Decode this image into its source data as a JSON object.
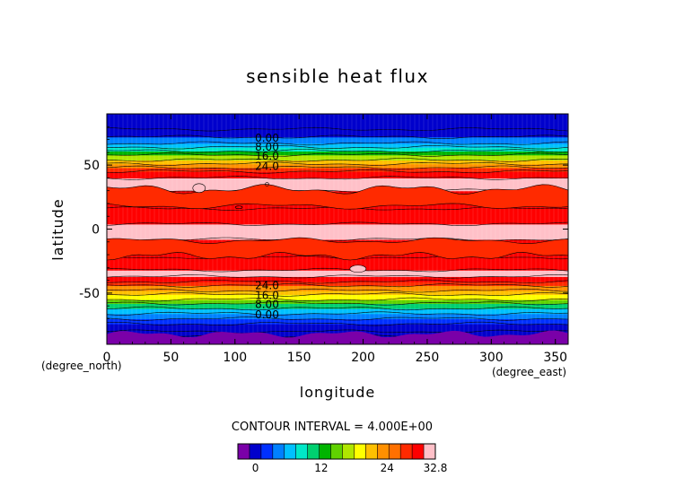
{
  "chart_data": {
    "type": "heatmap",
    "title": "sensible heat flux",
    "xlabel": "longitude",
    "ylabel": "latitude",
    "x_unit": "(degree_east)",
    "y_unit": "(degree_north)",
    "xlim": [
      0,
      360
    ],
    "ylim": [
      -90,
      90
    ],
    "x_ticks": [
      0,
      50,
      100,
      150,
      200,
      250,
      300,
      350
    ],
    "y_ticks": [
      -50,
      0,
      50
    ],
    "contour_interval_text": "CONTOUR INTERVAL = 4.000E+00",
    "contour_labels": {
      "north": [
        "0.00",
        "8.00",
        "16.0",
        "24.0"
      ],
      "south": [
        "24.0",
        "16.0",
        "8.00",
        "0.00"
      ]
    },
    "zonal_profile": {
      "lat": [
        -90,
        -84,
        -80,
        -74,
        -70,
        -66,
        -62,
        -58,
        -55,
        -51,
        -48,
        -44,
        -41,
        -37,
        -32,
        -22,
        -8,
        4,
        16,
        30,
        40,
        45,
        48,
        51,
        54,
        58,
        61,
        64,
        67,
        72,
        78,
        90
      ],
      "value": [
        -2,
        -2,
        1,
        1,
        2,
        5,
        9,
        13,
        16,
        20,
        22,
        25,
        28,
        31,
        32,
        29,
        32,
        32,
        28,
        32,
        31,
        28,
        25,
        22,
        19,
        15,
        11,
        8,
        5,
        2,
        0,
        0
      ]
    },
    "colorbar": {
      "min": -3.2,
      "max": 32.8,
      "tick_labels": [
        "0",
        "12",
        "24",
        "32.8"
      ],
      "tick_values": [
        0,
        12,
        24,
        32.8
      ]
    },
    "colors": [
      "#7a00a8",
      "#0000cc",
      "#0030ff",
      "#0080ff",
      "#00c0ff",
      "#00e8c8",
      "#00d070",
      "#00b400",
      "#60d200",
      "#b0e600",
      "#ffff00",
      "#ffc000",
      "#ff9000",
      "#ff7000",
      "#ff2a00",
      "#ff0000",
      "#ffc0c8"
    ],
    "grid": false
  }
}
